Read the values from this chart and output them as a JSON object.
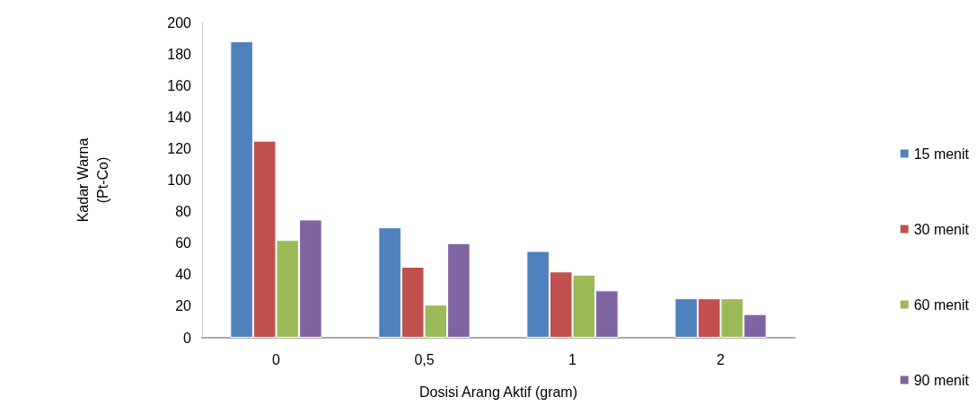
{
  "chart_data": {
    "type": "bar",
    "xlabel": "Dosisi Arang Aktif (gram)",
    "ylabel": "Kadar Warna\n(Pt-Co)",
    "categories": [
      "0",
      "0,5",
      "1",
      "2"
    ],
    "series": [
      {
        "name": "15 menit",
        "color": "#4f81bd",
        "values": [
          188,
          70,
          55,
          25
        ]
      },
      {
        "name": "30 menit",
        "color": "#c0504d",
        "values": [
          125,
          45,
          42,
          25
        ]
      },
      {
        "name": "60 menit",
        "color": "#9bbb59",
        "values": [
          62,
          21,
          40,
          25
        ]
      },
      {
        "name": "90 menit",
        "color": "#8064a2",
        "values": [
          75,
          60,
          30,
          15
        ]
      }
    ],
    "ylim": [
      0,
      200
    ],
    "yticks": [
      0,
      20,
      40,
      60,
      80,
      100,
      120,
      140,
      160,
      180,
      200
    ],
    "grid": false,
    "legend": "right"
  }
}
